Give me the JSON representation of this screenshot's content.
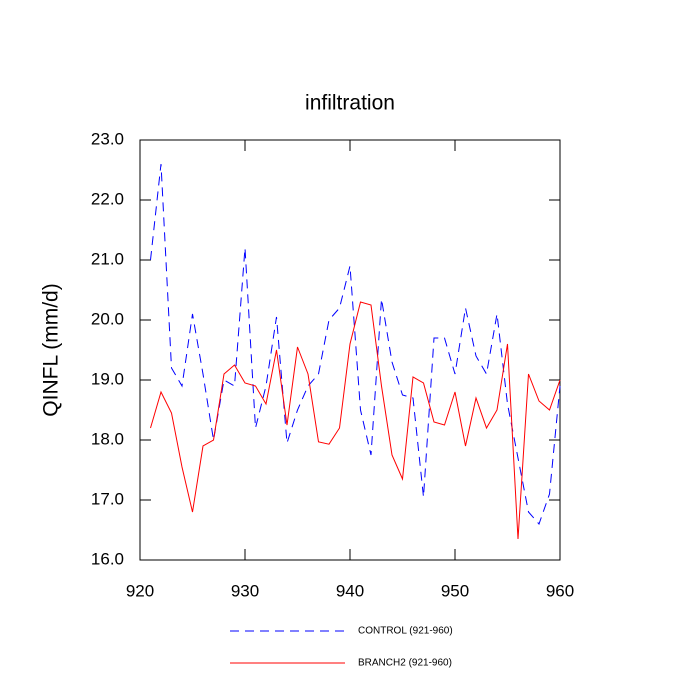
{
  "chart_data": {
    "type": "line",
    "title": "infiltration",
    "y_label": "QINFL  (mm/d)",
    "x": [
      921,
      922,
      923,
      924,
      925,
      926,
      927,
      928,
      929,
      930,
      931,
      932,
      933,
      934,
      935,
      936,
      937,
      938,
      939,
      940,
      941,
      942,
      943,
      944,
      945,
      946,
      947,
      948,
      949,
      950,
      951,
      952,
      953,
      954,
      955,
      956,
      957,
      958,
      959,
      960
    ],
    "series": [
      {
        "name": "CONTROL (921-960)",
        "color": "#0000ff",
        "dash": true,
        "values": [
          21.0,
          22.6,
          19.2,
          18.9,
          20.1,
          19.1,
          18.0,
          19.0,
          18.9,
          21.2,
          18.2,
          18.9,
          20.05,
          17.95,
          18.5,
          18.9,
          19.1,
          20.0,
          20.2,
          20.9,
          18.5,
          17.75,
          20.35,
          19.3,
          18.75,
          18.7,
          17.05,
          19.7,
          19.7,
          19.1,
          20.2,
          19.4,
          19.1,
          20.1,
          18.6,
          17.7,
          16.8,
          16.6,
          17.1,
          18.9
        ]
      },
      {
        "name": "BRANCH2 (921-960)",
        "color": "#ff0000",
        "dash": false,
        "values": [
          18.2,
          18.8,
          18.45,
          17.55,
          16.8,
          17.9,
          18.0,
          19.1,
          19.25,
          18.95,
          18.9,
          18.6,
          19.5,
          18.25,
          19.55,
          19.1,
          17.97,
          17.93,
          18.2,
          19.6,
          20.3,
          20.25,
          18.9,
          17.75,
          17.35,
          19.05,
          18.95,
          18.3,
          18.25,
          18.8,
          17.9,
          18.7,
          18.2,
          18.5,
          19.6,
          16.35,
          19.1,
          18.65,
          18.5,
          19.0
        ]
      }
    ],
    "xlim": [
      920,
      960
    ],
    "xticks": [
      920,
      930,
      940,
      950,
      960
    ],
    "ylim": [
      16,
      23
    ],
    "yticks": [
      {
        "value": 16,
        "label": "16.0"
      },
      {
        "value": 17,
        "label": "17.0"
      },
      {
        "value": 18,
        "label": "18.0"
      },
      {
        "value": 19,
        "label": "19.0"
      },
      {
        "value": 20,
        "label": "20.0"
      },
      {
        "value": 21,
        "label": "21.0"
      },
      {
        "value": 22,
        "label": "22.0"
      },
      {
        "value": 23,
        "label": "23.0"
      }
    ]
  }
}
